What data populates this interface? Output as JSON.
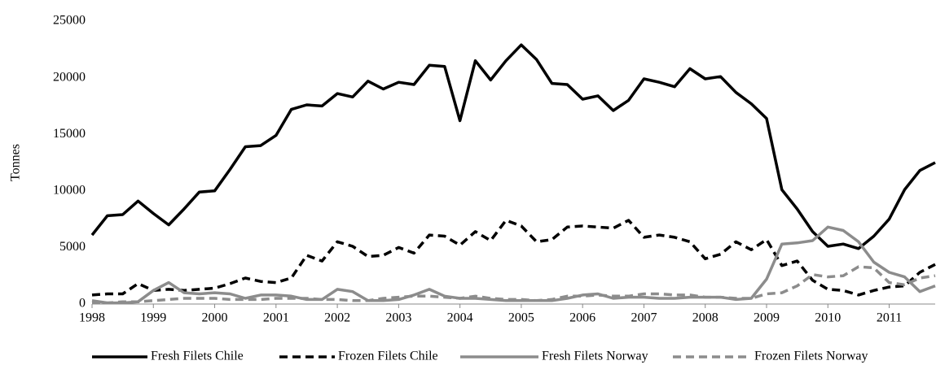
{
  "chart_data": {
    "type": "line",
    "ylabel": "Tonnes",
    "x": [
      1998,
      1998.25,
      1998.5,
      1998.75,
      1999,
      1999.25,
      1999.5,
      1999.75,
      2000,
      2000.25,
      2000.5,
      2000.75,
      2001,
      2001.25,
      2001.5,
      2001.75,
      2002,
      2002.25,
      2002.5,
      2002.75,
      2003,
      2003.25,
      2003.5,
      2003.75,
      2004,
      2004.25,
      2004.5,
      2004.75,
      2005,
      2005.25,
      2005.5,
      2005.75,
      2006,
      2006.25,
      2006.5,
      2006.75,
      2007,
      2007.25,
      2007.5,
      2007.75,
      2008,
      2008.25,
      2008.5,
      2008.75,
      2009,
      2009.25,
      2009.5,
      2009.75,
      2010,
      2010.25,
      2010.5,
      2010.75,
      2011,
      2011.25,
      2011.5,
      2011.75
    ],
    "xlim": [
      1998,
      2011.75
    ],
    "xticks": [
      1998,
      1999,
      2000,
      2001,
      2002,
      2003,
      2004,
      2005,
      2006,
      2007,
      2008,
      2009,
      2010,
      2011
    ],
    "ylim": [
      0,
      25000
    ],
    "yticks": [
      0,
      5000,
      10000,
      15000,
      20000,
      25000
    ],
    "series": [
      {
        "name": "Fresh Filets Chile",
        "color": "#000000",
        "dashed": false,
        "values": [
          6100,
          7800,
          7900,
          9100,
          8000,
          7000,
          8400,
          9900,
          10000,
          11900,
          13900,
          14000,
          14900,
          17200,
          17600,
          17500,
          18600,
          18300,
          19700,
          19000,
          19600,
          19400,
          21100,
          21000,
          16200,
          21500,
          19800,
          21500,
          22900,
          21600,
          19500,
          19400,
          18100,
          18400,
          17100,
          18000,
          19900,
          19600,
          19200,
          20800,
          19900,
          20100,
          18700,
          17700,
          16400,
          10100,
          8400,
          6400,
          5100,
          5300,
          4900,
          6000,
          7500,
          10100,
          11800,
          12500
        ]
      },
      {
        "name": "Frozen Filets Chile",
        "color": "#000000",
        "dashed": true,
        "values": [
          800,
          900,
          900,
          1800,
          1200,
          1300,
          1200,
          1300,
          1400,
          1800,
          2300,
          2000,
          1900,
          2300,
          4300,
          3800,
          5500,
          5100,
          4200,
          4300,
          5000,
          4500,
          6100,
          6000,
          5200,
          6400,
          5600,
          7400,
          6900,
          5500,
          5700,
          6800,
          6900,
          6800,
          6700,
          7400,
          5900,
          6100,
          5900,
          5500,
          4000,
          4400,
          5500,
          4800,
          5700,
          3400,
          3800,
          2100,
          1300,
          1200,
          800,
          1200,
          1500,
          1600,
          2800,
          3500
        ]
      },
      {
        "name": "Fresh Filets Norway",
        "color": "#8c8c8c",
        "dashed": false,
        "values": [
          300,
          100,
          100,
          200,
          1200,
          1900,
          1000,
          900,
          1000,
          900,
          500,
          800,
          800,
          700,
          400,
          400,
          1300,
          1100,
          300,
          300,
          400,
          800,
          1300,
          700,
          500,
          500,
          400,
          300,
          300,
          300,
          300,
          500,
          800,
          900,
          500,
          600,
          600,
          500,
          500,
          600,
          600,
          600,
          400,
          500,
          2200,
          5300,
          5400,
          5600,
          6800,
          6500,
          5500,
          3700,
          2800,
          2400,
          1100,
          1600
        ]
      },
      {
        "name": "Frozen Filets Norway",
        "color": "#8c8c8c",
        "dashed": true,
        "values": [
          100,
          100,
          200,
          200,
          300,
          400,
          500,
          500,
          500,
          400,
          400,
          400,
          500,
          500,
          500,
          400,
          400,
          300,
          300,
          500,
          600,
          700,
          700,
          600,
          500,
          700,
          500,
          400,
          400,
          300,
          400,
          700,
          700,
          800,
          700,
          700,
          900,
          900,
          800,
          800,
          600,
          600,
          500,
          500,
          900,
          1000,
          1600,
          2600,
          2400,
          2500,
          3300,
          3200,
          1900,
          1700,
          2300,
          2500
        ]
      }
    ]
  }
}
